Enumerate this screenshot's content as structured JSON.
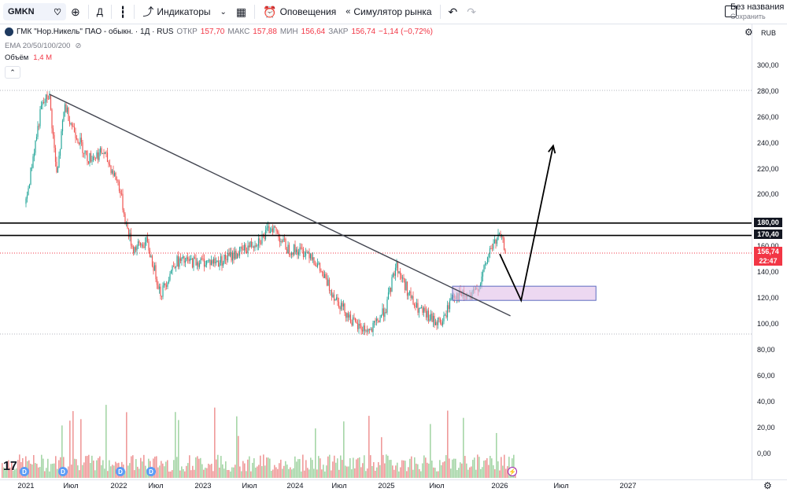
{
  "toolbar": {
    "symbol": "GMKN",
    "interval": "Д",
    "indicators_label": "Индикаторы",
    "alerts_label": "Оповещения",
    "replay_label": "Симулятор рынка",
    "layout_name": "Без названия",
    "save_label": "Сохранить"
  },
  "legend": {
    "title": "ГМК \"Нор.Никель\" ПАО - обыкн. · 1Д · RUS",
    "open_label": "ОТКР",
    "open": "157,70",
    "high_label": "МАКС",
    "high": "157,88",
    "low_label": "МИН",
    "low": "156,64",
    "close_label": "ЗАКР",
    "close": "156,74",
    "change": "−1,14 (−0,72%)",
    "ema_label": "EMA 20/50/100/200",
    "volume_label": "Объём",
    "volume_value": "1,4 M"
  },
  "price_axis": {
    "currency": "RUB",
    "ticks": [
      "300,00",
      "280,00",
      "260,00",
      "240,00",
      "220,00",
      "200,00",
      "160,00",
      "140,00",
      "120,00",
      "100,00",
      "80,00",
      "60,00",
      "40,00",
      "20,00",
      "0,00"
    ],
    "level_1": "180,00",
    "level_2": "170,40",
    "last_price": "156,74",
    "countdown": "22:47"
  },
  "time_axis": {
    "ticks": [
      "2021",
      "Июл",
      "2022",
      "Июл",
      "2023",
      "Июл",
      "2024",
      "Июл",
      "2025",
      "Июл",
      "2026",
      "Июл",
      "2027"
    ]
  },
  "events": {
    "dividend_mark": "D",
    "earnings_mark": "⚡"
  },
  "colors": {
    "up": "#26a69a",
    "down": "#ef5350",
    "last_price": "#f23645",
    "level_line": "#000000",
    "zone_fill": "#e1bee7",
    "zone_border": "#5c6bc0",
    "trendline": "#434651"
  },
  "chart_data": {
    "type": "candlestick",
    "symbol": "GMKN",
    "interval": "1D",
    "horizontal_levels": [
      180.0,
      170.4
    ],
    "last_price": 156.74,
    "price_path": [
      {
        "date": "2021-01",
        "price": 195
      },
      {
        "date": "2021-02",
        "price": 235
      },
      {
        "date": "2021-03",
        "price": 270
      },
      {
        "date": "2021-04",
        "price": 280
      },
      {
        "date": "2021-05",
        "price": 215
      },
      {
        "date": "2021-06",
        "price": 272
      },
      {
        "date": "2021-07",
        "price": 255
      },
      {
        "date": "2021-09",
        "price": 230
      },
      {
        "date": "2021-11",
        "price": 235
      },
      {
        "date": "2022-01",
        "price": 210
      },
      {
        "date": "2022-02",
        "price": 180
      },
      {
        "date": "2022-03",
        "price": 160
      },
      {
        "date": "2022-05",
        "price": 165
      },
      {
        "date": "2022-07",
        "price": 125
      },
      {
        "date": "2022-09",
        "price": 150
      },
      {
        "date": "2022-12",
        "price": 150
      },
      {
        "date": "2023-03",
        "price": 150
      },
      {
        "date": "2023-06",
        "price": 158
      },
      {
        "date": "2023-09",
        "price": 170
      },
      {
        "date": "2023-10",
        "price": 178
      },
      {
        "date": "2023-12",
        "price": 160
      },
      {
        "date": "2024-03",
        "price": 157
      },
      {
        "date": "2024-06",
        "price": 125
      },
      {
        "date": "2024-09",
        "price": 100
      },
      {
        "date": "2024-11",
        "price": 96
      },
      {
        "date": "2025-01",
        "price": 115
      },
      {
        "date": "2025-02",
        "price": 148
      },
      {
        "date": "2025-04",
        "price": 115
      },
      {
        "date": "2025-06",
        "price": 104
      },
      {
        "date": "2025-07",
        "price": 103
      },
      {
        "date": "2025-08",
        "price": 125
      },
      {
        "date": "2025-10",
        "price": 122
      },
      {
        "date": "2025-11",
        "price": 135
      },
      {
        "date": "2025-12",
        "price": 160
      },
      {
        "date": "2026-01",
        "price": 170
      },
      {
        "date": "2026-01-20",
        "price": 156.74
      }
    ],
    "trendline": [
      {
        "date": "2021-04",
        "price": 280
      },
      {
        "date": "2026-02",
        "price": 108
      }
    ],
    "projection": [
      {
        "date": "2026-01",
        "price": 156
      },
      {
        "date": "2026-03",
        "price": 120
      },
      {
        "date": "2026-06",
        "price": 240
      }
    ],
    "zone": {
      "from": "2025-08",
      "to": "2026-10",
      "low": 120,
      "high": 131
    }
  }
}
